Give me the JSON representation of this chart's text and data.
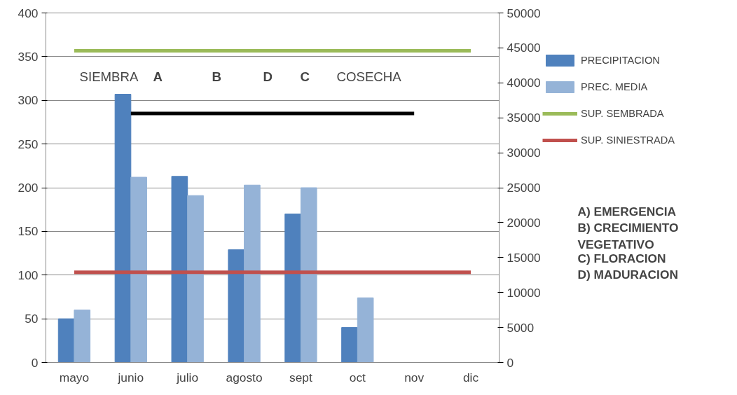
{
  "chart_data": {
    "type": "bar",
    "categories": [
      "mayo",
      "junio",
      "julio",
      "agosto",
      "sept",
      "oct",
      "nov",
      "dic"
    ],
    "series": [
      {
        "name": "PRECIPITACION",
        "color": "#4f81bd",
        "values": [
          50,
          307,
          213,
          129,
          170,
          40,
          null,
          null
        ]
      },
      {
        "name": "PREC. MEDIA",
        "color": "#95b3d7",
        "values": [
          60,
          212,
          191,
          203,
          200,
          74,
          null,
          null
        ]
      },
      {
        "name": "SUP. SEMBRADA",
        "type": "line",
        "axis": "y2",
        "color": "#9bbb59",
        "values": [
          44600,
          44600,
          44600,
          44600,
          44600,
          44600,
          44600,
          44600
        ]
      },
      {
        "name": "SUP. SINIESTRADA",
        "type": "line",
        "axis": "y2",
        "color": "#c0504d",
        "values": [
          12900,
          12900,
          12900,
          12900,
          12900,
          12900,
          12900,
          12900
        ]
      },
      {
        "type": "line",
        "color": "#000000",
        "values": [
          null,
          285,
          285,
          285,
          285,
          285,
          285,
          null
        ]
      }
    ],
    "ylim": [
      0,
      400
    ],
    "yticks": [
      0,
      50,
      100,
      150,
      200,
      250,
      300,
      350,
      400
    ],
    "y2lim": [
      0,
      50000
    ],
    "y2ticks": [
      0,
      5000,
      10000,
      15000,
      20000,
      25000,
      30000,
      35000,
      40000,
      45000,
      50000
    ],
    "grid": "y",
    "legend": "right",
    "annotations": [
      "SIEMBRA",
      "A",
      "B",
      "D",
      "C",
      "COSECHA",
      "A)  EMERGENCIA",
      "B)  CRECIMIENTO VEGETATIVO",
      "C)  FLORACION",
      "D)  MADURACION"
    ]
  }
}
